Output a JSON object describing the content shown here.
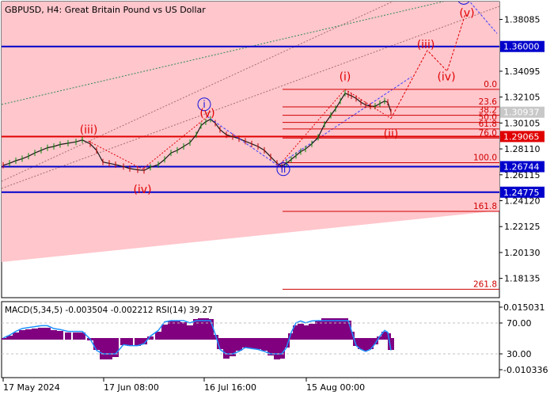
{
  "header": {
    "symbol": "GBPUSD",
    "timeframe": "H4",
    "description": "Great Britain Pound vs US Dollar"
  },
  "chart_data": {
    "type": "line",
    "price_axis": {
      "min": 1.1665,
      "max": 1.3946,
      "ticks": [
        1.38085,
        1.34095,
        1.32105,
        1.30105,
        1.2811,
        1.26115,
        1.2412,
        1.22125,
        1.2013,
        1.18135
      ]
    },
    "time_axis": {
      "labels": [
        "17 May 2024",
        "17 Jun 08:00",
        "16 Jul 16:00",
        "15 Aug 00:00"
      ]
    },
    "price_series": [
      [
        0,
        1.2685
      ],
      [
        8,
        1.27
      ],
      [
        16,
        1.272
      ],
      [
        24,
        1.2735
      ],
      [
        32,
        1.2755
      ],
      [
        40,
        1.278
      ],
      [
        48,
        1.28
      ],
      [
        56,
        1.282
      ],
      [
        64,
        1.283
      ],
      [
        72,
        1.2845
      ],
      [
        82,
        1.2855
      ],
      [
        92,
        1.2865
      ],
      [
        100,
        1.288
      ],
      [
        110,
        1.285
      ],
      [
        118,
        1.28
      ],
      [
        126,
        1.271
      ],
      [
        134,
        1.27
      ],
      [
        142,
        1.269
      ],
      [
        152,
        1.2675
      ],
      [
        160,
        1.266
      ],
      [
        170,
        1.265
      ],
      [
        178,
        1.2645
      ],
      [
        186,
        1.267
      ],
      [
        196,
        1.269
      ],
      [
        204,
        1.273
      ],
      [
        212,
        1.278
      ],
      [
        220,
        1.28
      ],
      [
        228,
        1.283
      ],
      [
        236,
        1.286
      ],
      [
        244,
        1.292
      ],
      [
        250,
        1.299
      ],
      [
        256,
        1.302
      ],
      [
        262,
        1.304
      ],
      [
        268,
        1.301
      ],
      [
        274,
        1.296
      ],
      [
        282,
        1.292
      ],
      [
        290,
        1.2905
      ],
      [
        298,
        1.289
      ],
      [
        306,
        1.287
      ],
      [
        314,
        1.285
      ],
      [
        322,
        1.283
      ],
      [
        330,
        1.28
      ],
      [
        338,
        1.275
      ],
      [
        346,
        1.27
      ],
      [
        352,
        1.268
      ],
      [
        358,
        1.27
      ],
      [
        364,
        1.273
      ],
      [
        370,
        1.276
      ],
      [
        376,
        1.279
      ],
      [
        382,
        1.281
      ],
      [
        390,
        1.285
      ],
      [
        398,
        1.29
      ],
      [
        406,
        1.3
      ],
      [
        414,
        1.307
      ],
      [
        420,
        1.312
      ],
      [
        426,
        1.318
      ],
      [
        432,
        1.324
      ],
      [
        436,
        1.323
      ],
      [
        440,
        1.322
      ],
      [
        446,
        1.32
      ],
      [
        452,
        1.317
      ],
      [
        458,
        1.315
      ],
      [
        464,
        1.314
      ],
      [
        470,
        1.314
      ],
      [
        476,
        1.316
      ],
      [
        482,
        1.318
      ],
      [
        486,
        1.317
      ],
      [
        490,
        1.3095
      ]
    ],
    "levels": {
      "blue_lines": [
        {
          "label": "1.36000",
          "value": 1.36
        },
        {
          "label": "1.26744",
          "value": 1.26744
        },
        {
          "label": "1.24775",
          "value": 1.24775
        }
      ],
      "red_line": {
        "label": "1.29065",
        "value": 1.29065
      },
      "current_price": {
        "label": "1.30937",
        "value": 1.30937
      }
    },
    "fibonacci": [
      {
        "label": "0.0",
        "value": 1.327
      },
      {
        "label": "23.6",
        "value": 1.3135
      },
      {
        "label": "38.2",
        "value": 1.307
      },
      {
        "label": "50.0",
        "value": 1.3015
      },
      {
        "label": "61.8",
        "value": 1.2965
      },
      {
        "label": "76.0",
        "value": 1.2895
      },
      {
        "label": "100.0",
        "value": 1.2705
      },
      {
        "label": "161.8",
        "value": 1.233
      },
      {
        "label": "261.8",
        "value": 1.173
      }
    ],
    "wave_labels": {
      "blue": [
        {
          "text": "i",
          "x": 258,
          "value": 1.313
        },
        {
          "text": "ii",
          "x": 358,
          "value": 1.263
        },
        {
          "text": "iii",
          "x": 586,
          "value": 1.395
        }
      ],
      "red_completed": [
        {
          "text": "(iii)",
          "x": 112,
          "value": 1.293
        },
        {
          "text": "(iv)",
          "x": 180,
          "value": 1.247
        },
        {
          "text": "(v)",
          "x": 262,
          "value": 1.306
        },
        {
          "text": "(i)",
          "x": 436,
          "value": 1.334
        },
        {
          "text": "(ii)",
          "x": 494,
          "value": 1.29
        }
      ],
      "red_projected": [
        {
          "text": "(iii)",
          "x": 538,
          "value": 1.3585
        },
        {
          "text": "(iv)",
          "x": 564,
          "value": 1.334
        },
        {
          "text": "(v)",
          "x": 590,
          "value": 1.383
        }
      ]
    },
    "projection_path": [
      [
        494,
        1.3045
      ],
      [
        540,
        1.357
      ],
      [
        565,
        1.341
      ],
      [
        588,
        1.385
      ]
    ],
    "wave_path_completed": [
      [
        112,
        1.287
      ],
      [
        180,
        1.2655
      ],
      [
        262,
        1.306
      ]
    ],
    "wave_path_iv_i": [
      [
        352,
        1.268
      ],
      [
        436,
        1.327
      ],
      [
        494,
        1.3045
      ]
    ],
    "wave_path_blue": [
      [
        262,
        1.306
      ],
      [
        352,
        1.268
      ]
    ],
    "wave_path_blue_future": [
      [
        588,
        1.3985
      ],
      [
        628,
        1.37
      ]
    ]
  },
  "indicator": {
    "label": "MACD(5,34,5) -0.003504 -0.002212 RSI(14) 39.27",
    "right_labels": [
      "0.015031",
      "70.00",
      "30.00",
      "-0.010336"
    ]
  }
}
